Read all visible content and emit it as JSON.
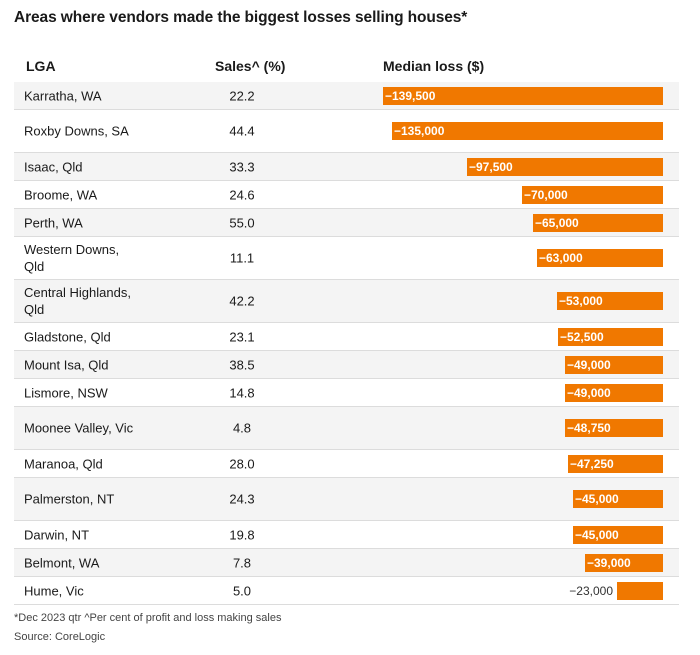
{
  "title": "Areas where vendors made the biggest losses selling houses*",
  "headers": {
    "lga": "LGA",
    "sales": "Sales^ (%)",
    "loss": "Median loss ($)"
  },
  "footnote": "*Dec 2023 qtr ^Per cent of profit and loss making sales",
  "source": "Source: CoreLogic",
  "colors": {
    "bar": "#f07800",
    "label_inside": "#ffffff"
  },
  "chart_data": {
    "type": "table",
    "columns": [
      "LGA",
      "Sales^ (%)",
      "Median loss ($)"
    ],
    "rows": [
      {
        "lga": "Karratha, WA",
        "sales": "22.2",
        "loss": -139500,
        "loss_label": "−139,500"
      },
      {
        "lga": "Roxby Downs, SA",
        "sales": "44.4",
        "loss": -135000,
        "loss_label": "−135,000"
      },
      {
        "lga": "Isaac, Qld",
        "sales": "33.3",
        "loss": -97500,
        "loss_label": "−97,500"
      },
      {
        "lga": "Broome, WA",
        "sales": "24.6",
        "loss": -70000,
        "loss_label": "−70,000"
      },
      {
        "lga": "Perth, WA",
        "sales": "55.0",
        "loss": -65000,
        "loss_label": "−65,000"
      },
      {
        "lga": "Western Downs, Qld",
        "sales": "11.1",
        "loss": -63000,
        "loss_label": "−63,000"
      },
      {
        "lga": "Central Highlands, Qld",
        "sales": "42.2",
        "loss": -53000,
        "loss_label": "−53,000"
      },
      {
        "lga": "Gladstone, Qld",
        "sales": "23.1",
        "loss": -52500,
        "loss_label": "−52,500"
      },
      {
        "lga": "Mount Isa, Qld",
        "sales": "38.5",
        "loss": -49000,
        "loss_label": "−49,000"
      },
      {
        "lga": "Lismore, NSW",
        "sales": "14.8",
        "loss": -49000,
        "loss_label": "−49,000"
      },
      {
        "lga": "Moonee Valley, Vic",
        "sales": "4.8",
        "loss": -48750,
        "loss_label": "−48,750"
      },
      {
        "lga": "Maranoa, Qld",
        "sales": "28.0",
        "loss": -47250,
        "loss_label": "−47,250"
      },
      {
        "lga": "Palmerston, NT",
        "sales": "24.3",
        "loss": -45000,
        "loss_label": "−45,000"
      },
      {
        "lga": "Darwin, NT",
        "sales": "19.8",
        "loss": -45000,
        "loss_label": "−45,000"
      },
      {
        "lga": "Belmont, WA",
        "sales": "7.8",
        "loss": -39000,
        "loss_label": "−39,000"
      },
      {
        "lga": "Hume, Vic",
        "sales": "5.0",
        "loss": -23000,
        "loss_label": "−23,000"
      }
    ]
  }
}
